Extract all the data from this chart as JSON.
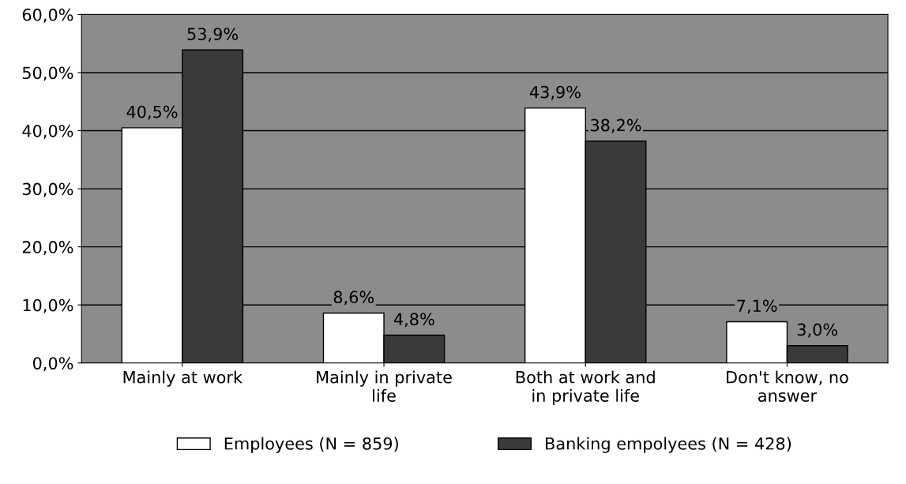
{
  "chart_data": {
    "type": "bar",
    "categories": [
      "Mainly at work",
      "Mainly in private\nlife",
      "Both at work and\nin private life",
      "Don't know, no\nanswer"
    ],
    "series": [
      {
        "name": "Employees (N = 859)",
        "color": "#ffffff",
        "values": [
          40.5,
          8.6,
          43.9,
          7.1
        ],
        "value_labels": [
          "40,5%",
          "8,6%",
          "43,9%",
          "7,1%"
        ]
      },
      {
        "name": "Banking empolyees (N = 428)",
        "color": "#3a3a3a",
        "values": [
          53.9,
          4.8,
          38.2,
          3.0
        ],
        "value_labels": [
          "53,9%",
          "4,8%",
          "38,2%",
          "3,0%"
        ]
      }
    ],
    "ylim": [
      0,
      60
    ],
    "yticks": [
      {
        "value": 0,
        "label": "0,0%"
      },
      {
        "value": 10,
        "label": "10,0%"
      },
      {
        "value": 20,
        "label": "20,0%"
      },
      {
        "value": 30,
        "label": "30,0%"
      },
      {
        "value": 40,
        "label": "40,0%"
      },
      {
        "value": 50,
        "label": "50,0%"
      },
      {
        "value": 60,
        "label": "60,0%"
      }
    ],
    "grid": "y",
    "legend": "bottom"
  }
}
